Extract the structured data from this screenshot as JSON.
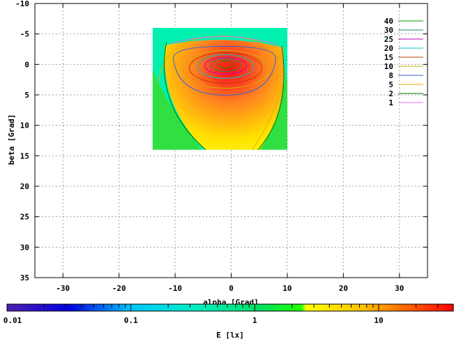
{
  "chart_data": {
    "type": "heatmap",
    "title": "",
    "xlabel": "alpha [Grad]",
    "ylabel": "beta [Grad]",
    "xlim": [
      -35,
      35
    ],
    "ylim": [
      35,
      -10
    ],
    "y_inverted": true,
    "xticks": [
      -30,
      -20,
      -10,
      0,
      10,
      20,
      30
    ],
    "xtick_labels": [
      "-30",
      "-20",
      "-10",
      "0",
      "10",
      "20",
      "30"
    ],
    "yticks": [
      -10,
      -5,
      0,
      5,
      10,
      15,
      20,
      25,
      30,
      35
    ],
    "ytick_labels": [
      "-10",
      "-5",
      "0",
      "5",
      "10",
      "15",
      "20",
      "25",
      "30",
      "35"
    ],
    "grid": true,
    "data_extent": {
      "alpha": [
        -14,
        10
      ],
      "beta": [
        -6,
        14
      ]
    },
    "peak": {
      "alpha": -1,
      "beta": 0,
      "E_lx": 40
    },
    "contour_levels": [
      {
        "level": "40",
        "color": "#00a000"
      },
      {
        "level": "30",
        "color": "#1e8a5a"
      },
      {
        "level": "25",
        "color": "#c000c0"
      },
      {
        "level": "20",
        "color": "#00c8c8"
      },
      {
        "level": "15",
        "color": "#b84000"
      },
      {
        "level": "10",
        "color": "#c8b400"
      },
      {
        "level": "8",
        "color": "#3060e0"
      },
      {
        "level": "5",
        "color": "#e0b000"
      },
      {
        "level": "2",
        "color": "#007000"
      },
      {
        "level": "1",
        "color": "#e070e0"
      }
    ],
    "legend_position": "top-right",
    "colorbar": {
      "label": "E [lx]",
      "scale": "log",
      "range": [
        0.01,
        40
      ],
      "tick_labels": [
        "0.01",
        "0.1",
        "1",
        "10"
      ],
      "tick_values": [
        0.01,
        0.1,
        1,
        10
      ]
    }
  }
}
